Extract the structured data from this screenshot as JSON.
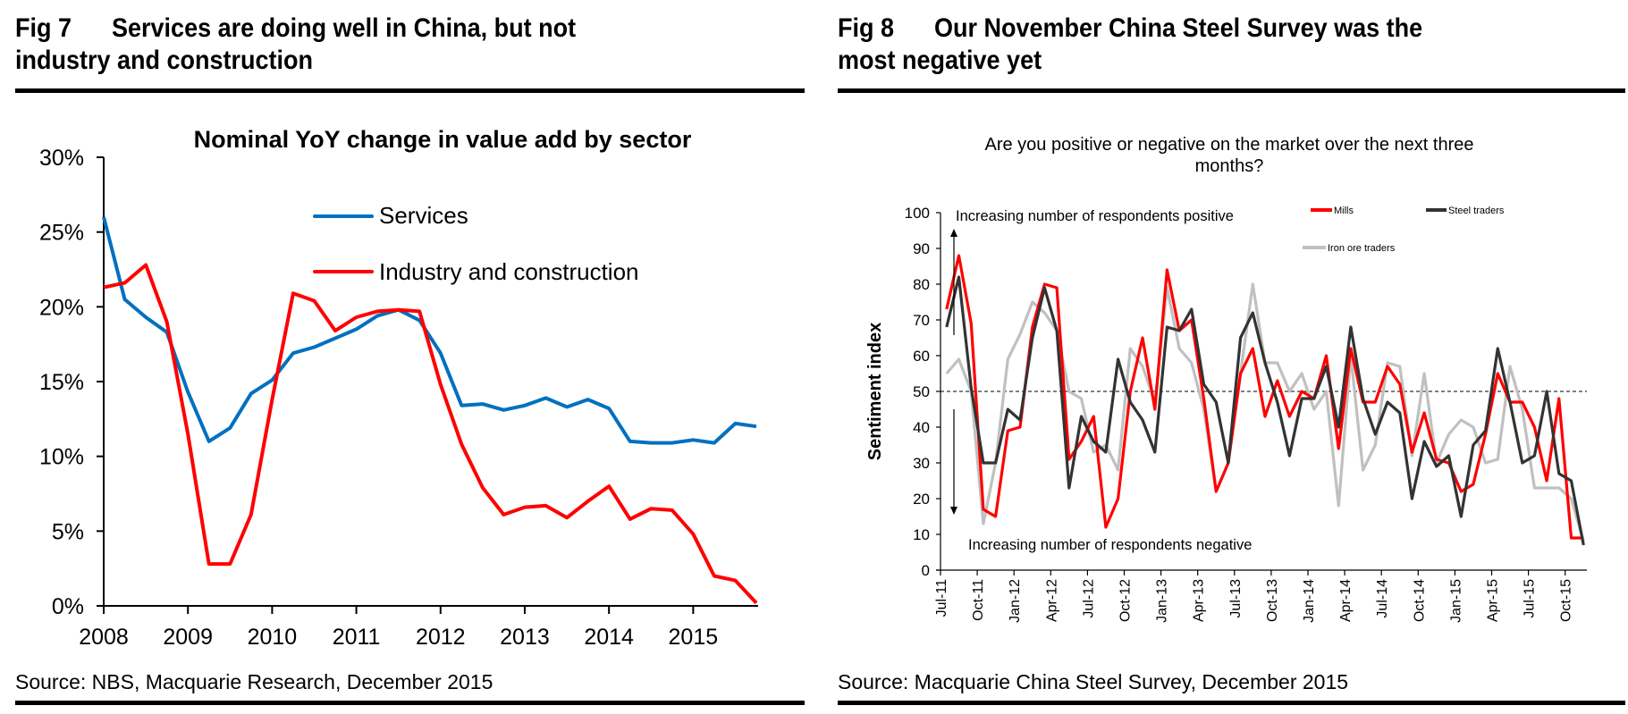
{
  "left": {
    "fig_number": "Fig 7",
    "fig_title_line1": "Services are doing well in China, but not",
    "fig_title_line2": "industry and construction",
    "source": "Source: NBS, Macquarie Research, December 2015"
  },
  "right": {
    "fig_number": "Fig 8",
    "fig_title_line1": "Our November China Steel Survey was the",
    "fig_title_line2": "most negative yet",
    "source": "Source: Macquarie China Steel Survey, December 2015"
  },
  "chart_data": [
    {
      "type": "line",
      "title": "Nominal YoY change in value add by sector",
      "xlabel": "",
      "ylabel": "",
      "frequency": "quarterly",
      "x_start": "2008 Q1",
      "x_end": "2015 Q3",
      "x_tick_labels": [
        "2008",
        "2009",
        "2010",
        "2011",
        "2012",
        "2013",
        "2014",
        "2015"
      ],
      "y_tick_labels": [
        "0%",
        "5%",
        "10%",
        "15%",
        "20%",
        "25%",
        "30%"
      ],
      "ylim": [
        0,
        30
      ],
      "grid": false,
      "legend_position": "top-right",
      "series": [
        {
          "name": "Services",
          "color": "#0070C0",
          "values": [
            26.0,
            20.5,
            19.3,
            18.3,
            14.3,
            11.0,
            11.9,
            14.2,
            15.1,
            16.9,
            17.3,
            17.9,
            18.5,
            19.4,
            19.8,
            19.1,
            16.9,
            13.4,
            13.5,
            13.1,
            13.4,
            13.9,
            13.3,
            13.8,
            13.2,
            11.0,
            10.9,
            10.9,
            11.1,
            10.9,
            12.2,
            12.0
          ]
        },
        {
          "name": "Industry and construction",
          "color": "#FF0000",
          "values": [
            21.3,
            21.6,
            22.8,
            19.0,
            11.5,
            2.8,
            2.8,
            6.1,
            13.8,
            20.9,
            20.4,
            18.4,
            19.3,
            19.7,
            19.8,
            19.7,
            14.8,
            10.8,
            7.9,
            6.1,
            6.6,
            6.7,
            5.9,
            7.0,
            8.0,
            5.8,
            6.5,
            6.4,
            4.8,
            2.0,
            1.7,
            0.2
          ]
        }
      ]
    },
    {
      "type": "line",
      "title": "Are you positive or negative on the market over the next three months?",
      "title_line1": "Are you positive or negative on the market over the next three",
      "title_line2": "months?",
      "xlabel": "",
      "ylabel": "Sentiment index",
      "frequency": "monthly",
      "x_start": "Jul-11",
      "x_end": "Nov-15",
      "x_tick_labels": [
        "Jul-11",
        "Oct-11",
        "Jan-12",
        "Apr-12",
        "Jul-12",
        "Oct-12",
        "Jan-13",
        "Apr-13",
        "Jul-13",
        "Oct-13",
        "Jan-14",
        "Apr-14",
        "Jul-14",
        "Oct-14",
        "Jan-15",
        "Apr-15",
        "Jul-15",
        "Oct-15"
      ],
      "y_tick_labels": [
        "0",
        "10",
        "20",
        "30",
        "40",
        "50",
        "60",
        "70",
        "80",
        "90",
        "100"
      ],
      "ylim": [
        0,
        100
      ],
      "grid": false,
      "reference_line": 50,
      "legend_position": "top-right",
      "annotations": [
        "Increasing number of respondents positive",
        "Increasing number of respondents negative"
      ],
      "series": [
        {
          "name": "Mills",
          "color": "#FF0000",
          "values": [
            73,
            88,
            69,
            17,
            15,
            39,
            40,
            68,
            80,
            79,
            31,
            36,
            43,
            12,
            20,
            50,
            65,
            45,
            84,
            67,
            70,
            48,
            22,
            30,
            55,
            62,
            43,
            53,
            43,
            50,
            48,
            60,
            34,
            62,
            47,
            47,
            57,
            52,
            33,
            44,
            31,
            30,
            22,
            24,
            38,
            55,
            47,
            47,
            40,
            25,
            48,
            9,
            9
          ]
        },
        {
          "name": "Steel traders",
          "color": "#333333",
          "values": [
            68,
            82,
            51,
            30,
            30,
            45,
            42,
            65,
            79,
            67,
            23,
            43,
            36,
            33,
            59,
            47,
            42,
            33,
            68,
            67,
            73,
            52,
            47,
            30,
            65,
            72,
            58,
            47,
            32,
            48,
            48,
            57,
            40,
            68,
            48,
            38,
            47,
            44,
            20,
            36,
            29,
            32,
            15,
            35,
            39,
            62,
            47,
            30,
            32,
            50,
            27,
            25,
            7
          ]
        },
        {
          "name": "Iron ore traders",
          "color": "#C0C0C0",
          "values": [
            55,
            59,
            50,
            13,
            30,
            59,
            66,
            75,
            72,
            67,
            50,
            48,
            33,
            35,
            28,
            62,
            57,
            47,
            79,
            62,
            58,
            45,
            22,
            30,
            55,
            80,
            58,
            58,
            50,
            55,
            45,
            50,
            18,
            60,
            28,
            35,
            58,
            57,
            32,
            55,
            30,
            38,
            42,
            40,
            30,
            31,
            57,
            45,
            23,
            23,
            23,
            20,
            8
          ]
        }
      ]
    }
  ]
}
